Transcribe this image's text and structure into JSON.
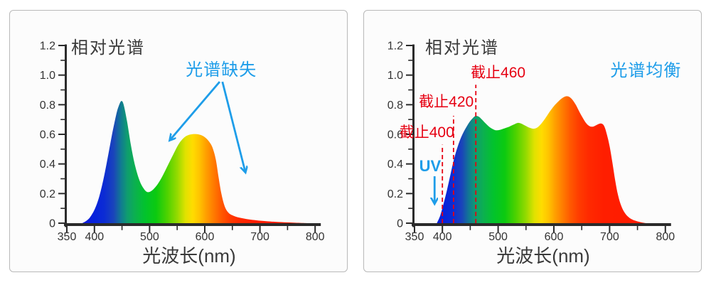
{
  "colors": {
    "annotation_blue": "#1e9de9",
    "annotation_red": "#e60012",
    "axis": "#2b2b2b",
    "tick_text": "#333333",
    "title_text": "#3a3a3a",
    "panel_border": "#b9b9b9",
    "panel_background": "#fcfcfc"
  },
  "spectrum_gradient": [
    [
      378,
      "#1018d8"
    ],
    [
      400,
      "#0622dc"
    ],
    [
      418,
      "#0c2cd4"
    ],
    [
      435,
      "#1a44ba"
    ],
    [
      448,
      "#117a92"
    ],
    [
      460,
      "#0f9e6e"
    ],
    [
      475,
      "#0bb24c"
    ],
    [
      492,
      "#02c32c"
    ],
    [
      512,
      "#0cca10"
    ],
    [
      532,
      "#4ed200"
    ],
    [
      550,
      "#94da00"
    ],
    [
      565,
      "#e0e200"
    ],
    [
      578,
      "#ffdc00"
    ],
    [
      590,
      "#ffc400"
    ],
    [
      602,
      "#ffa000"
    ],
    [
      615,
      "#ff7e00"
    ],
    [
      630,
      "#ff5800"
    ],
    [
      645,
      "#ff3c00"
    ],
    [
      662,
      "#ff2a00"
    ],
    [
      690,
      "#ff1e00"
    ],
    [
      800,
      "#ff1a00"
    ]
  ],
  "chart_data": [
    {
      "type": "area",
      "title": "相对光谱",
      "xlabel": "光波长(nm)",
      "ylabel": "",
      "xlim": [
        350,
        800
      ],
      "ylim": [
        0,
        1.2
      ],
      "grid": false,
      "legend": null,
      "x_ticks": [
        350,
        400,
        500,
        600,
        700,
        800
      ],
      "x_minor_ticks": [
        450,
        550,
        650,
        750
      ],
      "y_ticks": [
        "0",
        "0.2",
        "0.4",
        "0.6",
        "0.8",
        "1.0",
        "1.2"
      ],
      "y_minor_ticks": [
        0.1,
        0.3,
        0.5,
        0.7,
        0.9,
        1.1
      ],
      "series": [
        {
          "points": [
            [
              378,
              0
            ],
            [
              385,
              0.015
            ],
            [
              392,
              0.04
            ],
            [
              400,
              0.09
            ],
            [
              408,
              0.17
            ],
            [
              416,
              0.29
            ],
            [
              424,
              0.44
            ],
            [
              432,
              0.6
            ],
            [
              440,
              0.74
            ],
            [
              445,
              0.8
            ],
            [
              449,
              0.825
            ],
            [
              453,
              0.8
            ],
            [
              459,
              0.69
            ],
            [
              466,
              0.53
            ],
            [
              473,
              0.4
            ],
            [
              481,
              0.295
            ],
            [
              489,
              0.235
            ],
            [
              496,
              0.21
            ],
            [
              504,
              0.22
            ],
            [
              513,
              0.255
            ],
            [
              523,
              0.315
            ],
            [
              533,
              0.39
            ],
            [
              543,
              0.465
            ],
            [
              553,
              0.535
            ],
            [
              563,
              0.58
            ],
            [
              573,
              0.598
            ],
            [
              583,
              0.602
            ],
            [
              593,
              0.595
            ],
            [
              601,
              0.578
            ],
            [
              608,
              0.55
            ],
            [
              614,
              0.51
            ],
            [
              620,
              0.43
            ],
            [
              625,
              0.31
            ],
            [
              630,
              0.2
            ],
            [
              636,
              0.115
            ],
            [
              643,
              0.07
            ],
            [
              652,
              0.05
            ],
            [
              663,
              0.037
            ],
            [
              676,
              0.028
            ],
            [
              690,
              0.021
            ],
            [
              706,
              0.015
            ],
            [
              724,
              0.01
            ],
            [
              744,
              0.006
            ],
            [
              764,
              0.003
            ],
            [
              785,
              0
            ]
          ]
        }
      ],
      "cutoff_lines": [],
      "annotations": [
        {
          "id": "missing-spectrum-label",
          "type": "text",
          "text": "光谱缺失",
          "style": "annot-blue",
          "color": "blue",
          "nm": 630,
          "value": 1.037
        },
        {
          "id": "missing-arrow-left",
          "type": "arrow",
          "from": [
            627,
            0.955
          ],
          "to": [
            537,
            0.562
          ],
          "color": "blue"
        },
        {
          "id": "missing-arrow-right",
          "type": "arrow",
          "from": [
            632,
            0.955
          ],
          "to": [
            673.5,
            0.346
          ],
          "color": "blue"
        }
      ]
    },
    {
      "type": "area",
      "title": "相对光谱",
      "xlabel": "光波长(nm)",
      "ylabel": "",
      "xlim": [
        350,
        800
      ],
      "ylim": [
        0,
        1.2
      ],
      "grid": false,
      "legend": null,
      "x_ticks": [
        350,
        400,
        500,
        600,
        700,
        800
      ],
      "x_minor_ticks": [
        450,
        550,
        650,
        750
      ],
      "y_ticks": [
        "0",
        "0.2",
        "0.4",
        "0.6",
        "0.8",
        "1.0",
        "1.2"
      ],
      "y_minor_ticks": [
        0.1,
        0.3,
        0.5,
        0.7,
        0.9,
        1.1
      ],
      "series": [
        {
          "points": [
            [
              390,
              0
            ],
            [
              396,
              0.05
            ],
            [
              402,
              0.13
            ],
            [
              408,
              0.22
            ],
            [
              414,
              0.32
            ],
            [
              420,
              0.42
            ],
            [
              426,
              0.5
            ],
            [
              432,
              0.565
            ],
            [
              438,
              0.615
            ],
            [
              444,
              0.655
            ],
            [
              450,
              0.69
            ],
            [
              456,
              0.715
            ],
            [
              460,
              0.725
            ],
            [
              465,
              0.72
            ],
            [
              471,
              0.7
            ],
            [
              478,
              0.672
            ],
            [
              485,
              0.648
            ],
            [
              492,
              0.632
            ],
            [
              497,
              0.627
            ],
            [
              503,
              0.63
            ],
            [
              511,
              0.64
            ],
            [
              520,
              0.652
            ],
            [
              528,
              0.666
            ],
            [
              535,
              0.677
            ],
            [
              541,
              0.673
            ],
            [
              548,
              0.66
            ],
            [
              556,
              0.645
            ],
            [
              564,
              0.638
            ],
            [
              571,
              0.648
            ],
            [
              578,
              0.675
            ],
            [
              585,
              0.71
            ],
            [
              592,
              0.75
            ],
            [
              600,
              0.79
            ],
            [
              608,
              0.822
            ],
            [
              615,
              0.845
            ],
            [
              622,
              0.857
            ],
            [
              628,
              0.852
            ],
            [
              634,
              0.83
            ],
            [
              640,
              0.795
            ],
            [
              646,
              0.75
            ],
            [
              652,
              0.71
            ],
            [
              658,
              0.675
            ],
            [
              664,
              0.655
            ],
            [
              670,
              0.652
            ],
            [
              676,
              0.662
            ],
            [
              682,
              0.672
            ],
            [
              687,
              0.67
            ],
            [
              691,
              0.65
            ],
            [
              695,
              0.6
            ],
            [
              700,
              0.52
            ],
            [
              705,
              0.41
            ],
            [
              710,
              0.29
            ],
            [
              715,
              0.19
            ],
            [
              721,
              0.115
            ],
            [
              728,
              0.065
            ],
            [
              736,
              0.035
            ],
            [
              745,
              0.018
            ],
            [
              755,
              0.007
            ],
            [
              765,
              0
            ]
          ]
        }
      ],
      "cutoff_lines": [
        {
          "nm": 400,
          "top": 0.53,
          "label": "截止400",
          "label_nm": 372,
          "label_value": 0.614
        },
        {
          "nm": 420,
          "top": 0.725,
          "label": "截止420",
          "label_nm": 407,
          "label_value": 0.821
        },
        {
          "nm": 460,
          "top": 0.935,
          "label": "截止460",
          "label_nm": 500,
          "label_value": 1.018
        }
      ],
      "annotations": [
        {
          "id": "balanced-spectrum-label",
          "type": "text",
          "text": "光谱均衡",
          "style": "annot-blue",
          "color": "blue",
          "nm": 765,
          "value": 1.032
        },
        {
          "id": "uv-label",
          "type": "text",
          "text": "UV",
          "style": "annot-uv",
          "color": "blue",
          "nm": 378,
          "value": 0.389
        },
        {
          "id": "uv-arrow",
          "type": "arrow",
          "from": [
            386,
            0.317
          ],
          "to": [
            386,
            0.134
          ],
          "color": "blue"
        }
      ]
    }
  ]
}
